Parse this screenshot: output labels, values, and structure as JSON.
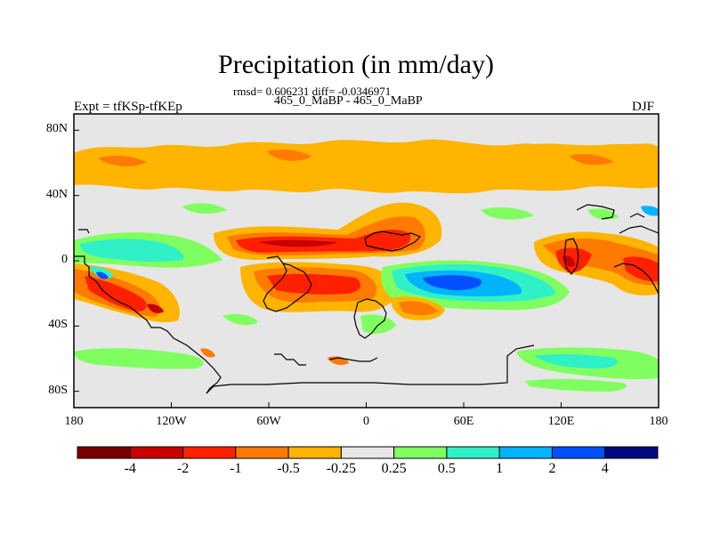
{
  "title": "Precipitation (in mm/day)",
  "stats": "rmsd= 0.606231 diff= -0.0346971",
  "models": "465_0_MaBP - 465_0_MaBP",
  "expt": "Expt = tfKSp-tfKEp",
  "season": "DJF",
  "map": {
    "lon_range": [
      -180,
      180
    ],
    "lat_range": [
      -90,
      90
    ],
    "x_ticks": [
      {
        "value": -180,
        "label": "180"
      },
      {
        "value": -120,
        "label": "120W"
      },
      {
        "value": -60,
        "label": "60W"
      },
      {
        "value": 0,
        "label": "0"
      },
      {
        "value": 60,
        "label": "60E"
      },
      {
        "value": 120,
        "label": "120E"
      },
      {
        "value": 180,
        "label": "180"
      }
    ],
    "y_ticks": [
      {
        "value": 80,
        "label": "80N"
      },
      {
        "value": 40,
        "label": "40N"
      },
      {
        "value": 0,
        "label": "0"
      },
      {
        "value": -40,
        "label": "40S"
      },
      {
        "value": -80,
        "label": "80S"
      }
    ],
    "background_color": "#e6e6e6"
  },
  "colorbar": {
    "colors": [
      "#7a0000",
      "#c80000",
      "#ff2000",
      "#ff7a00",
      "#ffb400",
      "#e6e6e6",
      "#80ff60",
      "#30f0c8",
      "#00b4ff",
      "#0050ff",
      "#000a80"
    ],
    "labels": [
      "-4",
      "-2",
      "-1",
      "-0.5",
      "-0.25",
      "0.25",
      "0.5",
      "1",
      "2",
      "4"
    ]
  }
}
